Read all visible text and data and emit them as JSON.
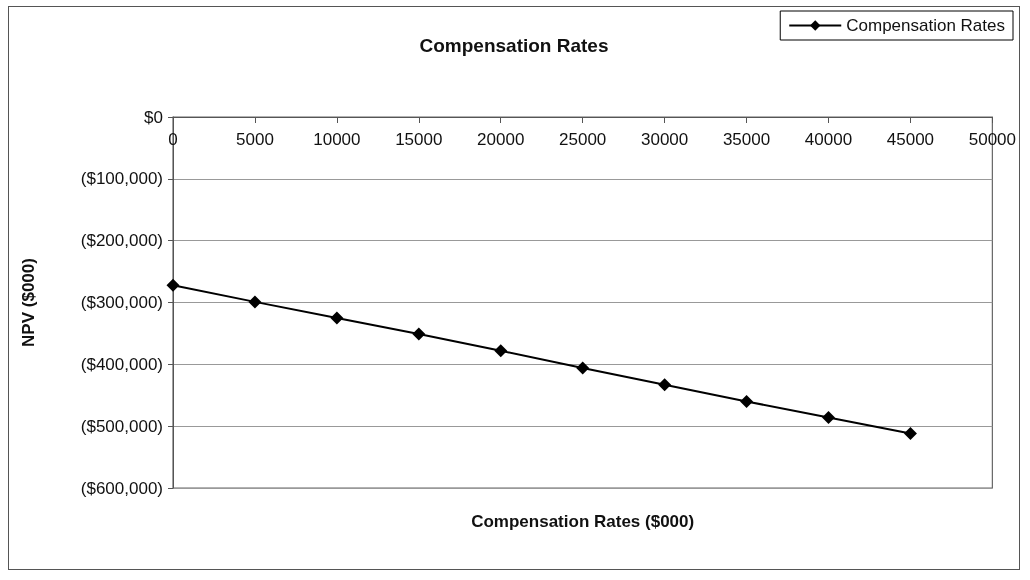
{
  "chart_data": {
    "type": "line",
    "title": "Compensation Rates",
    "xlabel": "Compensation Rates ($000)",
    "ylabel": "NPV ($000)",
    "x": [
      0,
      5000,
      10000,
      15000,
      20000,
      25000,
      30000,
      35000,
      40000,
      45000
    ],
    "series": [
      {
        "name": "Compensation Rates",
        "color": "#000000",
        "values": [
          -272000,
          -299000,
          -325000,
          -351000,
          -378000,
          -406000,
          -433000,
          -460000,
          -486000,
          -512000
        ]
      }
    ],
    "xlim": [
      0,
      50000
    ],
    "xticks": [
      0,
      5000,
      10000,
      15000,
      20000,
      25000,
      30000,
      35000,
      40000,
      45000,
      50000
    ],
    "ylim": [
      -600000,
      0
    ],
    "yticks": [
      {
        "value": 0,
        "label": "$0"
      },
      {
        "value": -100000,
        "label": "($100,000)"
      },
      {
        "value": -200000,
        "label": "($200,000)"
      },
      {
        "value": -300000,
        "label": "($300,000)"
      },
      {
        "value": -400000,
        "label": "($400,000)"
      },
      {
        "value": -500000,
        "label": "($500,000)"
      },
      {
        "value": -600000,
        "label": "($600,000)"
      }
    ],
    "grid": "y",
    "legend": "top right",
    "marker": "diamond",
    "line_style": "solid"
  }
}
